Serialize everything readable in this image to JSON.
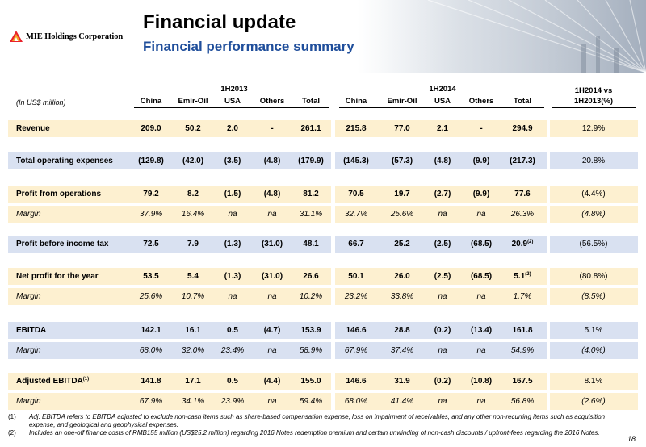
{
  "header": {
    "company": "MIE Holdings Corporation",
    "title": "Financial update",
    "subtitle": "Financial performance summary"
  },
  "table": {
    "unit_label": "(In US$ million)",
    "period_1": "1H2013",
    "period_2": "1H2014",
    "change_header_1": "1H2014 vs",
    "change_header_2": "1H2013(%)",
    "columns": [
      "China",
      "Emir-Oil",
      "USA",
      "Others",
      "Total",
      "China",
      "Emir-Oil",
      "USA",
      "Others",
      "Total"
    ],
    "rows": [
      {
        "label": "Revenue",
        "values": [
          "209.0",
          "50.2",
          "2.0",
          "-",
          "261.1",
          "215.8",
          "77.0",
          "2.1",
          "-",
          "294.9"
        ],
        "change": "12.9%"
      },
      {
        "label": "Total operating expenses",
        "values": [
          "(129.8)",
          "(42.0)",
          "(3.5)",
          "(4.8)",
          "(179.9)",
          "(145.3)",
          "(57.3)",
          "(4.8)",
          "(9.9)",
          "(217.3)"
        ],
        "change": "20.8%"
      },
      {
        "label": "Profit from operations",
        "values": [
          "79.2",
          "8.2",
          "(1.5)",
          "(4.8)",
          "81.2",
          "70.5",
          "19.7",
          "(2.7)",
          "(9.9)",
          "77.6"
        ],
        "change": "(4.4%)"
      },
      {
        "label": "Margin",
        "values": [
          "37.9%",
          "16.4%",
          "na",
          "na",
          "31.1%",
          "32.7%",
          "25.6%",
          "na",
          "na",
          "26.3%"
        ],
        "change": "(4.8%)"
      },
      {
        "label": "Profit before income tax",
        "values": [
          "72.5",
          "7.9",
          "(1.3)",
          "(31.0)",
          "48.1",
          "66.7",
          "25.2",
          "(2.5)",
          "(68.5)",
          "20.9"
        ],
        "note": "(2)",
        "change": "(56.5%)"
      },
      {
        "label": "Net profit for the year",
        "values": [
          "53.5",
          "5.4",
          "(1.3)",
          "(31.0)",
          "26.6",
          "50.1",
          "26.0",
          "(2.5)",
          "(68.5)",
          "5.1"
        ],
        "note": "(2)",
        "change": "(80.8%)"
      },
      {
        "label": "Margin",
        "values": [
          "25.6%",
          "10.7%",
          "na",
          "na",
          "10.2%",
          "23.2%",
          "33.8%",
          "na",
          "na",
          "1.7%"
        ],
        "change": "(8.5%)"
      },
      {
        "label": "EBITDA",
        "values": [
          "142.1",
          "16.1",
          "0.5",
          "(4.7)",
          "153.9",
          "146.6",
          "28.8",
          "(0.2)",
          "(13.4)",
          "161.8"
        ],
        "change": "5.1%"
      },
      {
        "label": "Margin",
        "values": [
          "68.0%",
          "32.0%",
          "23.4%",
          "na",
          "58.9%",
          "67.9%",
          "37.4%",
          "na",
          "na",
          "54.9%"
        ],
        "change": "(4.0%)"
      },
      {
        "label": "Adjusted EBITDA",
        "label_note": "(1)",
        "values": [
          "141.8",
          "17.1",
          "0.5",
          "(4.4)",
          "155.0",
          "146.6",
          "31.9",
          "(0.2)",
          "(10.8)",
          "167.5"
        ],
        "change": "8.1%"
      },
      {
        "label": "Margin",
        "values": [
          "67.9%",
          "34.1%",
          "23.9%",
          "na",
          "59.4%",
          "68.0%",
          "41.4%",
          "na",
          "na",
          "56.8%"
        ],
        "change": "(2.6%)"
      }
    ]
  },
  "footnotes": [
    {
      "num": "(1)",
      "text": "Adj. EBITDA refers to EBITDA adjusted to exclude non-cash items such as share-based compensation expense, loss on impairment of receivables, and any other non-recurring items such as acquisition expense, and geological and geophysical expenses."
    },
    {
      "num": "(2)",
      "text": "Includes an one-off finance costs of RMB155 million (US$25.2 million) regarding 2016 Notes redemption premium and certain unwinding of non-cash discounts / upfront-fees regarding the 2016 Notes."
    }
  ],
  "page_number": "18",
  "colors": {
    "title_blue": "#1f4e9b",
    "band_yellow": "#fdf0d0",
    "band_blue": "#d9e1f1"
  }
}
